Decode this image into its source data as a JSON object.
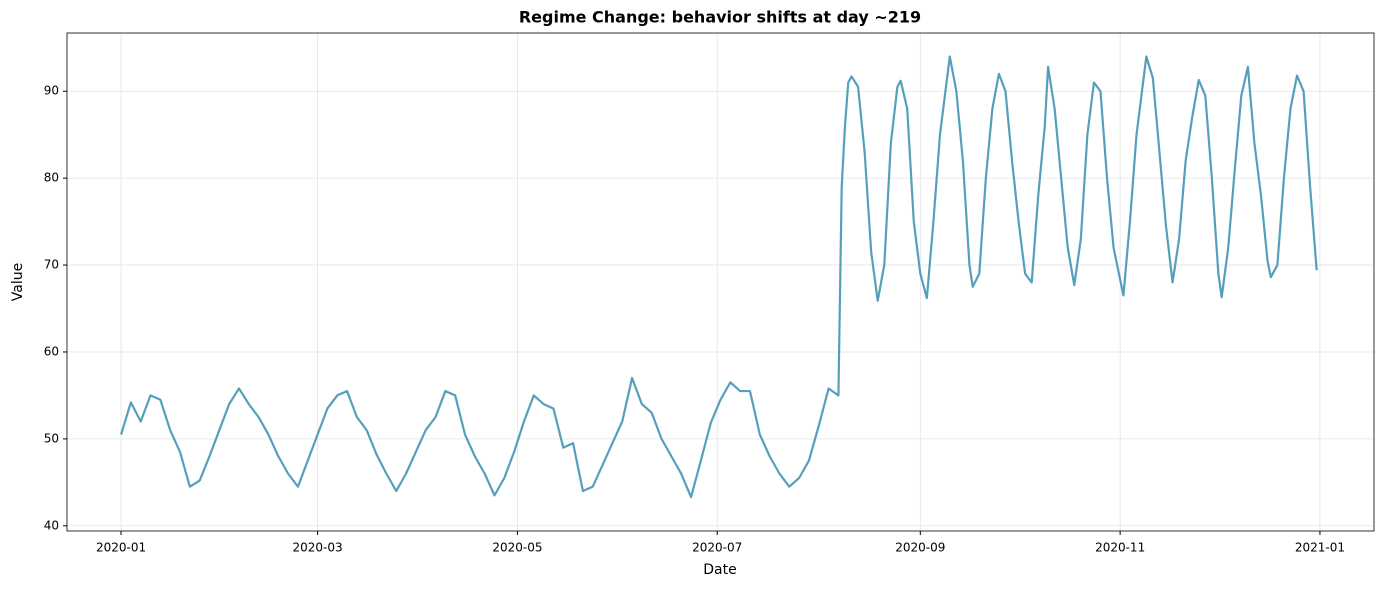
{
  "chart_data": {
    "type": "line",
    "title": "Regime Change: behavior shifts at day ~219",
    "x_label": "Date",
    "y_label": "Value",
    "color": "#559fbc",
    "grid": true,
    "xlim": [
      -16.5,
      382.5
    ],
    "ylim": [
      39.4,
      96.7
    ],
    "xticks": [
      {
        "value": 0,
        "label": "2020-01"
      },
      {
        "value": 60,
        "label": "2020-03"
      },
      {
        "value": 121,
        "label": "2020-05"
      },
      {
        "value": 182,
        "label": "2020-07"
      },
      {
        "value": 244,
        "label": "2020-09"
      },
      {
        "value": 305,
        "label": "2020-11"
      },
      {
        "value": 366,
        "label": "2021-01"
      }
    ],
    "yticks": [
      40,
      50,
      60,
      70,
      80,
      90
    ],
    "x": [
      0,
      3,
      6,
      9,
      12,
      15,
      18,
      21,
      24,
      27,
      30,
      33,
      36,
      39,
      42,
      45,
      48,
      51,
      54,
      57,
      60,
      63,
      66,
      69,
      72,
      75,
      78,
      81,
      84,
      87,
      90,
      93,
      96,
      99,
      102,
      105,
      108,
      111,
      114,
      117,
      120,
      123,
      126,
      129,
      132,
      135,
      138,
      141,
      144,
      147,
      150,
      153,
      156,
      159,
      162,
      165,
      168,
      171,
      174,
      177,
      180,
      183,
      186,
      189,
      192,
      195,
      198,
      201,
      204,
      207,
      210,
      213,
      216,
      219,
      220,
      221,
      222,
      223,
      225,
      227,
      229,
      231,
      233,
      235,
      237,
      238,
      240,
      242,
      244,
      246,
      248,
      250,
      253,
      255,
      257,
      259,
      260,
      262,
      264,
      266,
      268,
      270,
      272,
      274,
      276,
      278,
      280,
      282,
      283,
      285,
      287,
      289,
      291,
      293,
      295,
      297,
      299,
      301,
      303,
      306,
      308,
      310,
      313,
      315,
      317,
      319,
      321,
      323,
      325,
      327,
      329,
      331,
      333,
      335,
      336,
      338,
      340,
      342,
      344,
      346,
      348,
      350,
      351,
      353,
      355,
      357,
      359,
      361,
      363,
      365
    ],
    "values": [
      50.5,
      54.2,
      52,
      55,
      54.5,
      51,
      48.5,
      44.5,
      45.2,
      48,
      51,
      54,
      55.8,
      54,
      52.5,
      50.5,
      48,
      46,
      44.5,
      47.5,
      50.5,
      53.5,
      55,
      55.5,
      52.5,
      51,
      48.2,
      46,
      44,
      46,
      48.5,
      51,
      52.5,
      55.5,
      55,
      50.5,
      48,
      46,
      43.5,
      45.5,
      48.5,
      52,
      55,
      54,
      53.5,
      49,
      49.5,
      44,
      44.5,
      47,
      49.5,
      52,
      57,
      54,
      53,
      50,
      48,
      46,
      43.3,
      47.5,
      51.8,
      54.5,
      56.5,
      55.5,
      55.5,
      50.5,
      48,
      46,
      44.5,
      45.5,
      47.5,
      51.5,
      55.8,
      55,
      79,
      86,
      91,
      91.7,
      90.5,
      83,
      71.5,
      65.9,
      70,
      84,
      90.5,
      91.2,
      88,
      75,
      69,
      66.2,
      75,
      85,
      94,
      90,
      82,
      70,
      67.5,
      69,
      80,
      88,
      92,
      90,
      82,
      75,
      69,
      68,
      78,
      86,
      92.8,
      88,
      80,
      72,
      67.7,
      73,
      85,
      91,
      90,
      80,
      72,
      66.5,
      75,
      85,
      94,
      91.5,
      83,
      74.5,
      68,
      73,
      82,
      87,
      91.3,
      89.5,
      80,
      69,
      66.3,
      72,
      81,
      89.5,
      92.8,
      84,
      78,
      70.5,
      68.6,
      70,
      80,
      88,
      91.8,
      90,
      79,
      69.4
    ]
  }
}
